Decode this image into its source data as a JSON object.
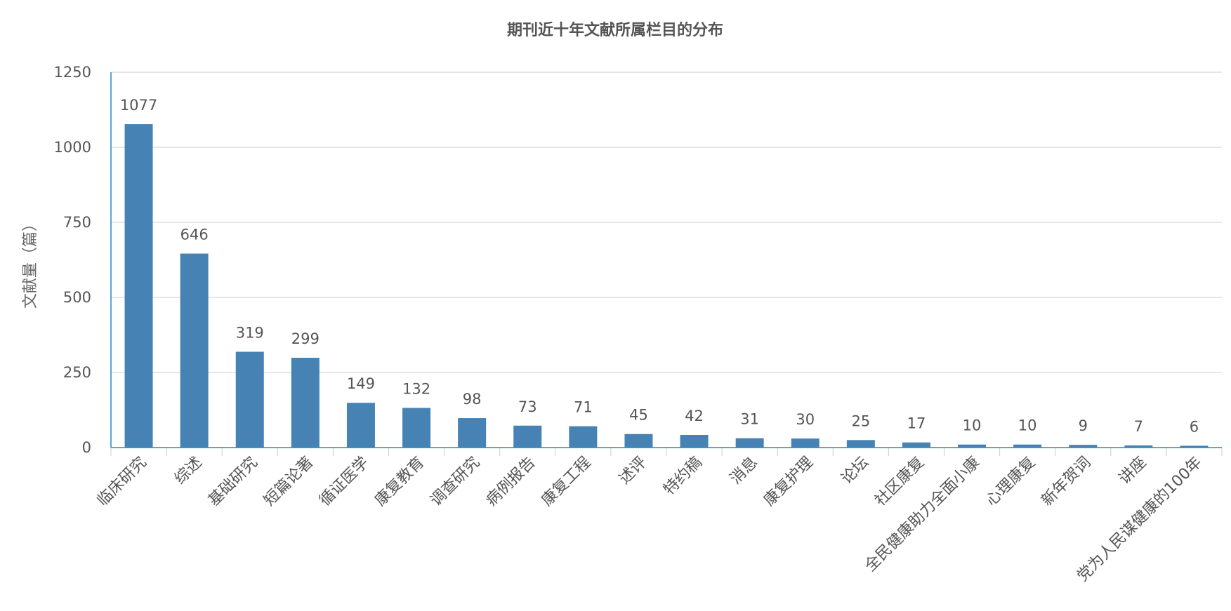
{
  "chart_data": {
    "type": "bar",
    "title": "期刊近十年文献所属栏目的分布",
    "ylabel": "文献量（篇）",
    "xlabel": "",
    "ylim": [
      0,
      1250
    ],
    "yticks": [
      0,
      250,
      500,
      750,
      1000,
      1250
    ],
    "grid": true,
    "legend": "none",
    "bar_color": "#4682b4",
    "axis_color": "#1f88c8",
    "grid_color": "#cccccc",
    "categories": [
      "临床研究",
      "综述",
      "基础研究",
      "短篇论著",
      "循证医学",
      "康复教育",
      "调查研究",
      "病例报告",
      "康复工程",
      "述评",
      "特约稿",
      "消息",
      "康复护理",
      "论坛",
      "社区康复",
      "全民健康助力全面小康",
      "心理康复",
      "新年贺词",
      "讲座",
      "党为人民谋健康的100年"
    ],
    "values": [
      1077,
      646,
      319,
      299,
      149,
      132,
      98,
      73,
      71,
      45,
      42,
      31,
      30,
      25,
      17,
      10,
      10,
      9,
      7,
      6
    ]
  }
}
